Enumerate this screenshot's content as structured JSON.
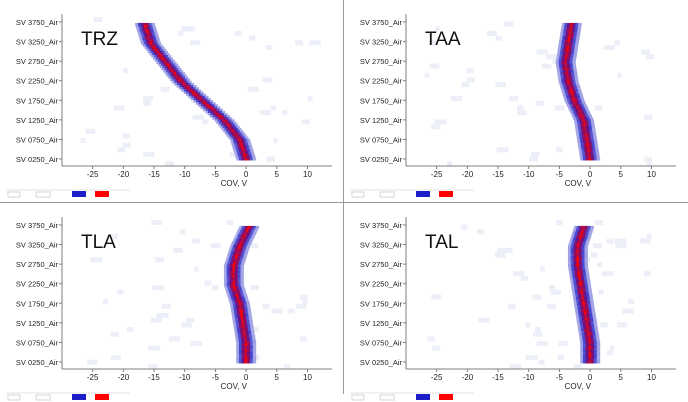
{
  "panels": [
    {
      "title": "TRZ",
      "ytick_labels": [
        "SV 3750_Air",
        "SV 3250_Air",
        "SV 2750_Air",
        "SV 2250_Air",
        "SV 1750_Air",
        "SV 1250_Air",
        "SV 0750_Air",
        "SV 0250_Air"
      ],
      "xlabel": "COV, V",
      "xtick_labels": [
        "-25",
        "-20",
        "-15",
        "-10",
        "-5",
        "0",
        "5",
        "10"
      ]
    },
    {
      "title": "TAA",
      "ytick_labels": [
        "SV 3750_Air",
        "SV 3250_Air",
        "SV 2750_Air",
        "SV 2250_Air",
        "SV 1750_Air",
        "SV 1250_Air",
        "SV 0750_Air",
        "SV 0250_Air"
      ],
      "xlabel": "COV, V",
      "xtick_labels": [
        "-25",
        "-20",
        "-15",
        "-10",
        "-5",
        "0",
        "5",
        "10"
      ]
    },
    {
      "title": "TLA",
      "ytick_labels": [
        "SV 3750_Air",
        "SV 3250_Air",
        "SV 2750_Air",
        "SV 2250_Air",
        "SV 1750_Air",
        "SV 1250_Air",
        "SV 0750_Air",
        "SV 0250_Air"
      ],
      "xlabel": "COV, V",
      "xtick_labels": [
        "-25",
        "-20",
        "-15",
        "-10",
        "-5",
        "0",
        "5",
        "10"
      ]
    },
    {
      "title": "TAL",
      "ytick_labels": [
        "SV 3750_Air",
        "SV 3250_Air",
        "SV 2750_Air",
        "SV 2250_Air",
        "SV 1750_Air",
        "SV 1250_Air",
        "SV 0750_Air",
        "SV 0250_Air"
      ],
      "xlabel": "COV, V",
      "xtick_labels": [
        "-25",
        "-20",
        "-15",
        "-10",
        "-5",
        "0",
        "5",
        "10"
      ]
    }
  ],
  "colors": {
    "axis": "#7f7f7f",
    "high": "#ff0000",
    "mid": "#1e1ec8",
    "low": "#d6d8f2",
    "text": "#222222"
  },
  "chart_data": [
    {
      "type": "heatmap",
      "title": "TRZ",
      "xlabel": "COV, V",
      "ylabel": "",
      "xlim": [
        -30,
        14
      ],
      "y_categories": [
        "SV 3750_Air",
        "SV 3250_Air",
        "SV 2750_Air",
        "SV 2250_Air",
        "SV 1750_Air",
        "SV 1250_Air",
        "SV 0750_Air",
        "SV 0250_Air"
      ],
      "ridge": [
        {
          "sv": 3750,
          "cov": -16.5
        },
        {
          "sv": 3250,
          "cov": -15.5
        },
        {
          "sv": 2750,
          "cov": -13.0
        },
        {
          "sv": 2250,
          "cov": -10.5
        },
        {
          "sv": 1750,
          "cov": -7.0
        },
        {
          "sv": 1250,
          "cov": -3.5
        },
        {
          "sv": 750,
          "cov": -1.0
        },
        {
          "sv": 250,
          "cov": 0.0
        }
      ]
    },
    {
      "type": "heatmap",
      "title": "TAA",
      "xlabel": "COV, V",
      "ylabel": "",
      "xlim": [
        -30,
        14
      ],
      "y_categories": [
        "SV 3750_Air",
        "SV 3250_Air",
        "SV 2750_Air",
        "SV 2250_Air",
        "SV 1750_Air",
        "SV 1250_Air",
        "SV 0750_Air",
        "SV 0250_Air"
      ],
      "ridge": [
        {
          "sv": 3750,
          "cov": -3.0
        },
        {
          "sv": 3250,
          "cov": -3.5
        },
        {
          "sv": 2750,
          "cov": -4.0
        },
        {
          "sv": 2250,
          "cov": -3.5
        },
        {
          "sv": 1750,
          "cov": -2.5
        },
        {
          "sv": 1250,
          "cov": -1.0
        },
        {
          "sv": 750,
          "cov": -0.5
        },
        {
          "sv": 250,
          "cov": 0.0
        }
      ]
    },
    {
      "type": "heatmap",
      "title": "TLA",
      "xlabel": "COV, V",
      "ylabel": "",
      "xlim": [
        -30,
        14
      ],
      "y_categories": [
        "SV 3750_Air",
        "SV 3250_Air",
        "SV 2750_Air",
        "SV 2250_Air",
        "SV 1750_Air",
        "SV 1250_Air",
        "SV 0750_Air",
        "SV 0250_Air"
      ],
      "ridge": [
        {
          "sv": 3750,
          "cov": 0.5
        },
        {
          "sv": 3250,
          "cov": -1.0
        },
        {
          "sv": 2750,
          "cov": -2.0
        },
        {
          "sv": 2250,
          "cov": -2.0
        },
        {
          "sv": 1750,
          "cov": -1.0
        },
        {
          "sv": 1250,
          "cov": -0.5
        },
        {
          "sv": 750,
          "cov": 0.0
        },
        {
          "sv": 250,
          "cov": 0.0
        }
      ]
    },
    {
      "type": "heatmap",
      "title": "TAL",
      "xlabel": "COV, V",
      "ylabel": "",
      "xlim": [
        -30,
        14
      ],
      "y_categories": [
        "SV 3750_Air",
        "SV 3250_Air",
        "SV 2750_Air",
        "SV 2250_Air",
        "SV 1750_Air",
        "SV 1250_Air",
        "SV 0750_Air",
        "SV 0250_Air"
      ],
      "ridge": [
        {
          "sv": 3750,
          "cov": -1.0
        },
        {
          "sv": 3250,
          "cov": -2.0
        },
        {
          "sv": 2750,
          "cov": -2.0
        },
        {
          "sv": 2250,
          "cov": -1.5
        },
        {
          "sv": 1750,
          "cov": -1.0
        },
        {
          "sv": 1250,
          "cov": -0.5
        },
        {
          "sv": 750,
          "cov": 0.0
        },
        {
          "sv": 250,
          "cov": 0.0
        }
      ]
    }
  ]
}
